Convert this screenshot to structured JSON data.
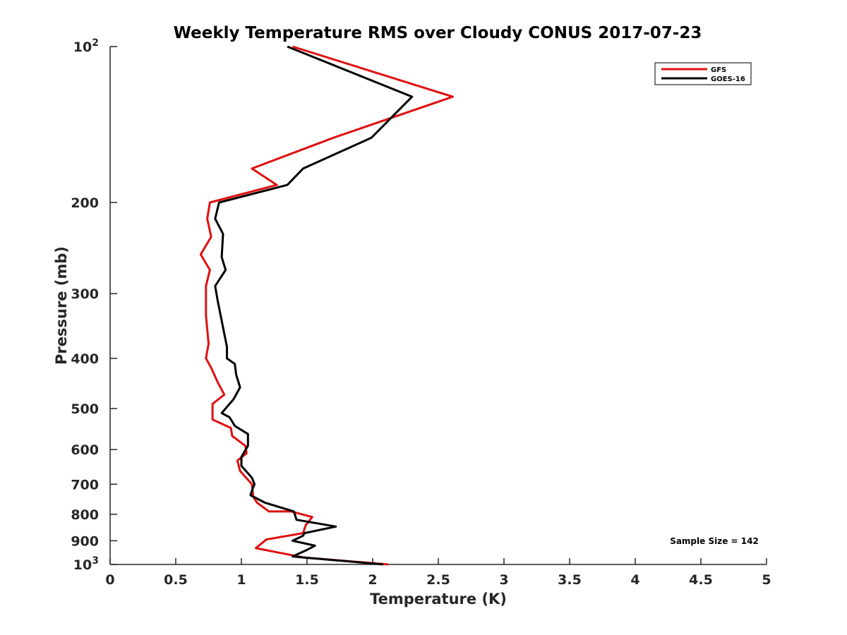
{
  "chart_data": {
    "type": "line",
    "title": "Weekly Temperature RMS over Cloudy CONUS 2017-07-23",
    "xlabel": "Temperature (K)",
    "ylabel": "Pressure (mb)",
    "xlim": [
      0,
      5
    ],
    "ylim": [
      100,
      1000
    ],
    "y_scale": "log",
    "y_reversed": true,
    "grid": false,
    "legend_position": "top-right",
    "x_ticks": [
      {
        "value": 0,
        "label": "0"
      },
      {
        "value": 0.5,
        "label": "0.5"
      },
      {
        "value": 1,
        "label": "1"
      },
      {
        "value": 1.5,
        "label": "1.5"
      },
      {
        "value": 2,
        "label": "2"
      },
      {
        "value": 2.5,
        "label": "2.5"
      },
      {
        "value": 3,
        "label": "3"
      },
      {
        "value": 3.5,
        "label": "3.5"
      },
      {
        "value": 4,
        "label": "4"
      },
      {
        "value": 4.5,
        "label": "4.5"
      },
      {
        "value": 5,
        "label": "5"
      }
    ],
    "y_ticks": [
      {
        "value": 100,
        "label": "10",
        "sup": "2"
      },
      {
        "value": 200,
        "label": "200",
        "sup": ""
      },
      {
        "value": 300,
        "label": "300",
        "sup": ""
      },
      {
        "value": 400,
        "label": "400",
        "sup": ""
      },
      {
        "value": 500,
        "label": "500",
        "sup": ""
      },
      {
        "value": 600,
        "label": "600",
        "sup": ""
      },
      {
        "value": 700,
        "label": "700",
        "sup": ""
      },
      {
        "value": 800,
        "label": "800",
        "sup": ""
      },
      {
        "value": 900,
        "label": "900",
        "sup": ""
      },
      {
        "value": 1000,
        "label": "10",
        "sup": "3"
      }
    ],
    "annotation": "Sample Size = 142",
    "series": [
      {
        "name": "GFS",
        "color": "#e01010",
        "x": [
          1.39,
          2.61,
          1.7,
          1.08,
          1.27,
          0.76,
          0.74,
          0.77,
          0.69,
          0.76,
          0.73,
          0.73,
          0.75,
          0.73,
          0.77,
          0.82,
          0.87,
          0.78,
          0.78,
          0.92,
          0.93,
          1.03,
          1.04,
          0.97,
          0.99,
          1.08,
          1.09,
          1.12,
          1.21,
          1.38,
          1.54,
          1.49,
          1.47,
          1.19,
          1.11,
          1.48,
          2.12
        ],
        "y": [
          100,
          125,
          150,
          172,
          185,
          200,
          215,
          233,
          252,
          270,
          290,
          330,
          375,
          400,
          417,
          445,
          470,
          490,
          525,
          545,
          565,
          590,
          610,
          630,
          660,
          700,
          740,
          760,
          790,
          790,
          810,
          840,
          870,
          895,
          930,
          970,
          1000
        ]
      },
      {
        "name": "GOES-16",
        "color": "#000000",
        "x": [
          1.35,
          2.3,
          1.99,
          1.47,
          1.35,
          0.83,
          0.8,
          0.86,
          0.85,
          0.88,
          0.8,
          0.82,
          0.89,
          0.89,
          0.95,
          0.96,
          0.99,
          0.94,
          0.85,
          0.91,
          0.95,
          1.05,
          1.05,
          1.0,
          1.0,
          1.08,
          1.1,
          1.08,
          1.07,
          1.18,
          1.4,
          1.42,
          1.72,
          1.48,
          1.47,
          1.39,
          1.56,
          1.49,
          1.39,
          1.48,
          2.08
        ],
        "y": [
          100,
          125,
          150,
          172,
          185,
          200,
          215,
          230,
          255,
          270,
          290,
          310,
          380,
          400,
          410,
          430,
          455,
          480,
          510,
          520,
          540,
          560,
          590,
          620,
          645,
          680,
          700,
          720,
          735,
          760,
          790,
          820,
          845,
          870,
          880,
          900,
          920,
          940,
          965,
          970,
          1000
        ]
      }
    ]
  }
}
